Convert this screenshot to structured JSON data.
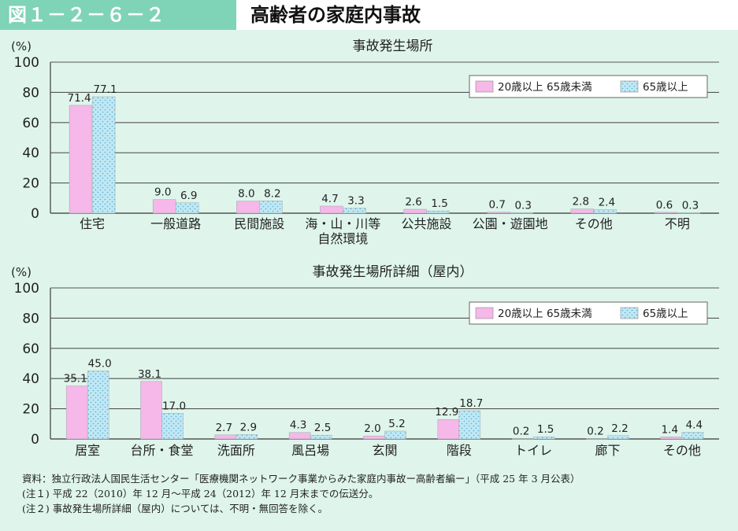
{
  "header": {
    "figure_number": "図１－２－６－２",
    "title": "高齢者の家庭内事故"
  },
  "colors": {
    "series_a": "#f5b8e8",
    "series_b": "#bfe8f5",
    "grid": "#555555",
    "header_band": "#7fd3b6",
    "background": "#dff5ec"
  },
  "chart_data": [
    {
      "type": "bar",
      "title": "事故発生場所",
      "unit_label": "(%)",
      "ylim": [
        0,
        100
      ],
      "yticks": [
        0,
        20,
        40,
        60,
        80,
        100
      ],
      "grid": true,
      "legend_position": "top-right",
      "categories": [
        "住宅",
        "一般道路",
        "民間施設",
        "海・山・川等\n自然環境",
        "公共施設",
        "公園・遊園地",
        "その他",
        "不明"
      ],
      "series": [
        {
          "name": "20歳以上 65歳未満",
          "values": [
            71.4,
            9.0,
            8.0,
            4.7,
            2.6,
            0.7,
            2.8,
            0.6
          ],
          "labels": [
            "71.4",
            "9.0",
            "8.0",
            "4.7",
            "2.6",
            "0.7",
            "2.8",
            "0.6"
          ]
        },
        {
          "name": "65歳以上",
          "values": [
            77.1,
            6.9,
            8.2,
            3.3,
            1.5,
            0.3,
            2.4,
            0.3
          ],
          "labels": [
            "77.1",
            "6.9",
            "8.2",
            "3.3",
            "1.5",
            "0.3",
            "2.4",
            "0.3"
          ]
        }
      ]
    },
    {
      "type": "bar",
      "title": "事故発生場所詳細（屋内）",
      "unit_label": "(%)",
      "ylim": [
        0,
        100
      ],
      "yticks": [
        0,
        20,
        40,
        60,
        80,
        100
      ],
      "grid": true,
      "legend_position": "top-right",
      "categories": [
        "居室",
        "台所・食堂",
        "洗面所",
        "風呂場",
        "玄関",
        "階段",
        "トイレ",
        "廊下",
        "その他"
      ],
      "series": [
        {
          "name": "20歳以上 65歳未満",
          "values": [
            35.1,
            38.1,
            2.7,
            4.3,
            2.0,
            12.9,
            0.2,
            0.2,
            1.4
          ],
          "labels": [
            "35.1",
            "38.1",
            "2.7",
            "4.3",
            "2.0",
            "12.9",
            "0.2",
            "0.2",
            "1.4"
          ]
        },
        {
          "name": "65歳以上",
          "values": [
            45.0,
            17.0,
            2.9,
            2.5,
            5.2,
            18.7,
            1.5,
            2.2,
            4.4
          ],
          "labels": [
            "45.0",
            "17.0",
            "2.9",
            "2.5",
            "5.2",
            "18.7",
            "1.5",
            "2.2",
            "4.4"
          ]
        }
      ]
    }
  ],
  "notes": [
    "資料：独立行政法人国民生活センター「医療機関ネットワーク事業からみた家庭内事故ー高齢者編ー」（平成 25 年 3 月公表）",
    "(注１) 平成 22（2010）年 12 月～平成 24（2012）年 12 月末までの伝送分。",
    "(注２) 事故発生場所詳細（屋内）については、不明・無回答を除く。"
  ]
}
